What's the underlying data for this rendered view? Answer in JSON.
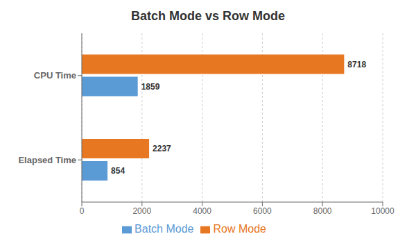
{
  "chart_data": {
    "type": "bar",
    "title": "Batch Mode vs Row Mode",
    "orientation": "horizontal",
    "categories": [
      "Elapsed Time",
      "CPU Time"
    ],
    "series": [
      {
        "name": "Row Mode",
        "color": "#E87722",
        "values": [
          2237,
          8718
        ]
      },
      {
        "name": "Batch Mode",
        "color": "#5B9BD5",
        "values": [
          854,
          1859
        ]
      }
    ],
    "xlim": [
      0,
      10000
    ],
    "xticks": [
      0,
      2000,
      4000,
      6000,
      8000,
      10000
    ],
    "grid": true,
    "legend": "bottom",
    "data_labels": true
  }
}
